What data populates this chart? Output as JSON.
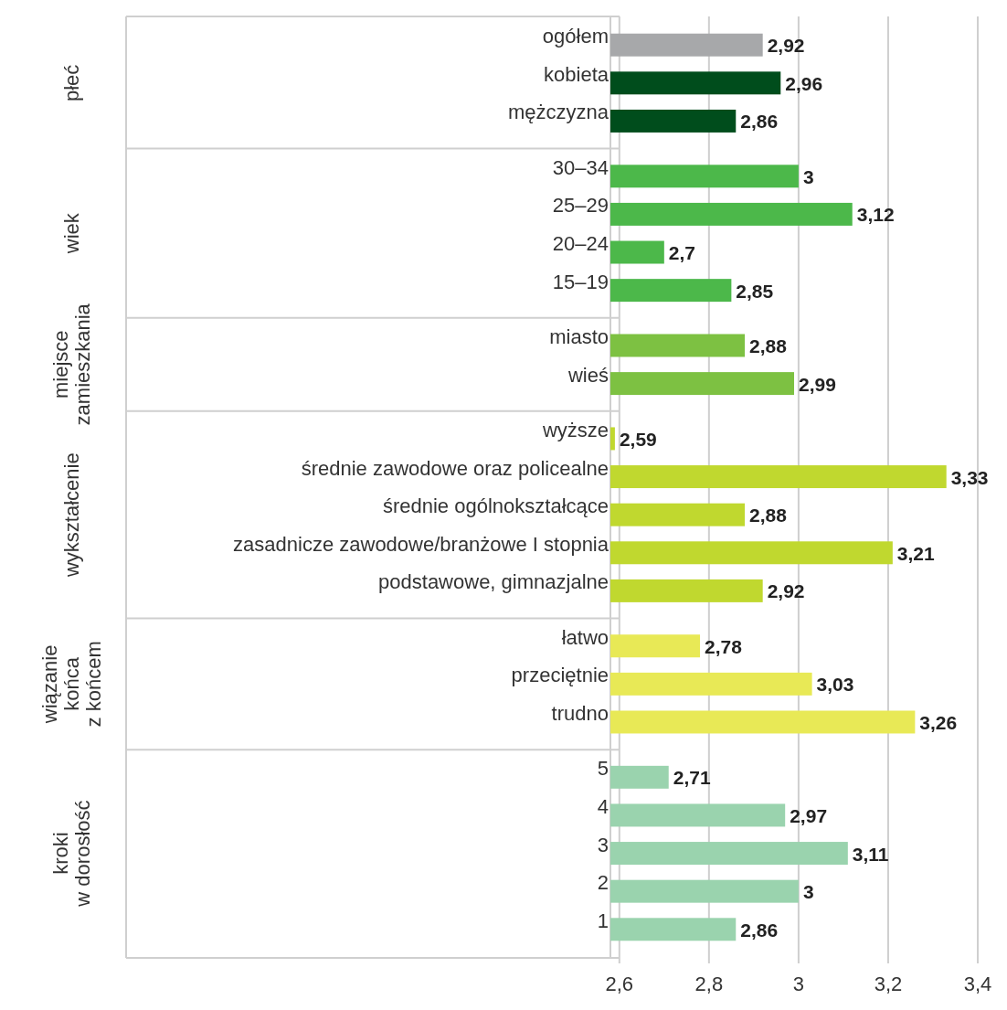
{
  "chart_data": {
    "type": "bar",
    "orientation": "horizontal",
    "categories": [
      "ogółem",
      "kobieta",
      "mężczyzna",
      "30–34",
      "25–29",
      "20–24",
      "15–19",
      "miasto",
      "wieś",
      "wyższe",
      "średnie zawodowe oraz policealne",
      "średnie ogólnokształcące",
      "zasadnicze zawodowe/branżowe I stopnia",
      "podstawowe, gimnazjalne",
      "łatwo",
      "przeciętnie",
      "trudno",
      "5",
      "4",
      "3",
      "2",
      "1"
    ],
    "series": [
      {
        "color": "#a7a8aa",
        "values": [
          2.92,
          null,
          null,
          null,
          null,
          null,
          null,
          null,
          null,
          null,
          null,
          null,
          null,
          null,
          null,
          null,
          null,
          null,
          null,
          null,
          null,
          null
        ],
        "value_labels": [
          "2,92",
          null,
          null,
          null,
          null,
          null,
          null,
          null,
          null,
          null,
          null,
          null,
          null,
          null,
          null,
          null,
          null,
          null,
          null,
          null,
          null,
          null
        ]
      },
      {
        "color": "#004d1c",
        "values": [
          null,
          2.96,
          2.86,
          null,
          null,
          null,
          null,
          null,
          null,
          null,
          null,
          null,
          null,
          null,
          null,
          null,
          null,
          null,
          null,
          null,
          null,
          null
        ],
        "value_labels": [
          null,
          "2,96",
          "2,86",
          null,
          null,
          null,
          null,
          null,
          null,
          null,
          null,
          null,
          null,
          null,
          null,
          null,
          null,
          null,
          null,
          null,
          null,
          null
        ]
      },
      {
        "color": "#4cb84a",
        "values": [
          null,
          null,
          null,
          3,
          3.12,
          2.7,
          2.85,
          null,
          null,
          null,
          null,
          null,
          null,
          null,
          null,
          null,
          null,
          null,
          null,
          null,
          null,
          null
        ],
        "value_labels": [
          null,
          null,
          null,
          "3",
          "3,12",
          "2,7",
          "2,85",
          null,
          null,
          null,
          null,
          null,
          null,
          null,
          null,
          null,
          null,
          null,
          null,
          null,
          null,
          null
        ]
      },
      {
        "color": "#7dc142",
        "values": [
          null,
          null,
          null,
          null,
          null,
          null,
          null,
          2.88,
          2.99,
          null,
          null,
          null,
          null,
          null,
          null,
          null,
          null,
          null,
          null,
          null,
          null,
          null
        ],
        "value_labels": [
          null,
          null,
          null,
          null,
          null,
          null,
          null,
          "2,88",
          "2,99",
          null,
          null,
          null,
          null,
          null,
          null,
          null,
          null,
          null,
          null,
          null,
          null,
          null
        ]
      },
      {
        "color": "#c0d82f",
        "values": [
          null,
          null,
          null,
          null,
          null,
          null,
          null,
          null,
          null,
          2.59,
          3.33,
          2.88,
          3.21,
          2.92,
          null,
          null,
          null,
          null,
          null,
          null,
          null,
          null
        ],
        "value_labels": [
          null,
          null,
          null,
          null,
          null,
          null,
          null,
          null,
          null,
          "2,59",
          "3,33",
          "2,88",
          "3,21",
          "2,92",
          null,
          null,
          null,
          null,
          null,
          null,
          null,
          null
        ]
      },
      {
        "color": "#e8e956",
        "values": [
          null,
          null,
          null,
          null,
          null,
          null,
          null,
          null,
          null,
          null,
          null,
          null,
          null,
          null,
          2.78,
          3.03,
          3.26,
          null,
          null,
          null,
          null,
          null
        ],
        "value_labels": [
          null,
          null,
          null,
          null,
          null,
          null,
          null,
          null,
          null,
          null,
          null,
          null,
          null,
          null,
          "2,78",
          "3,03",
          "3,26",
          null,
          null,
          null,
          null,
          null
        ]
      },
      {
        "color": "#9ad3ae",
        "values": [
          null,
          null,
          null,
          null,
          null,
          null,
          null,
          null,
          null,
          null,
          null,
          null,
          null,
          null,
          null,
          null,
          null,
          2.71,
          2.97,
          3.11,
          3,
          2.86
        ],
        "value_labels": [
          null,
          null,
          null,
          null,
          null,
          null,
          null,
          null,
          null,
          null,
          null,
          null,
          null,
          null,
          null,
          null,
          null,
          "2,71",
          "2,97",
          "3,11",
          "3",
          "2,86"
        ]
      }
    ],
    "xlim": [
      2.58,
      3.4
    ],
    "xticks": [
      {
        "value": 2.6,
        "label": "2,6"
      },
      {
        "value": 2.8,
        "label": "2,8"
      },
      3,
      {
        "value": 3.2,
        "label": "3,2"
      },
      {
        "value": 3.4,
        "label": "3,4"
      }
    ],
    "annotations": [
      "płeć",
      "wiek",
      "miejsce\nzamieszkania",
      "wykształcenie",
      "wiązanie\nkońca\nz końcem",
      "kroki\nw dorosłość"
    ],
    "grid": "x"
  }
}
